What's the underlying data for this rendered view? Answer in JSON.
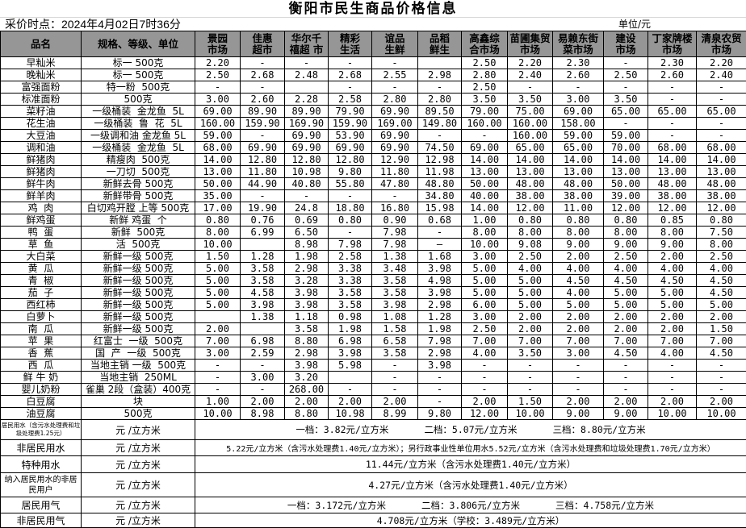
{
  "title": "衡阳市民生商品价格信息",
  "timestamp": "采价时点：2024年4月02日7时36分",
  "unit": "单位/元",
  "header_color": "#969696",
  "columns": [
    "品名",
    "规格、等级、单位",
    "景园\n市场",
    "佳惠\n超市",
    "华尔千\n禧超 市",
    "精彩\n生活",
    "谊品\n生鲜",
    "品稻\n鲜生",
    "高鑫综\n合市场",
    "苗圃集贸\n市场",
    "易赖东街\n菜市场",
    "建设\n市场",
    "丁家牌楼\n市场",
    "清泉农贸\n市场"
  ],
  "rows": [
    {
      "name": "早籼米",
      "spec": "标一 500克",
      "prices": [
        "2.20",
        "-",
        "-",
        "-",
        "-",
        "",
        "2.50",
        "2.20",
        "2.30",
        "-",
        "2.30",
        "2.20"
      ]
    },
    {
      "name": "晚籼米",
      "spec": "标一 500克",
      "prices": [
        "2.50",
        "2.68",
        "2.48",
        "2.68",
        "2.55",
        "2.98",
        "2.80",
        "2.40",
        "2.60",
        "2.50",
        "2.60",
        "2.40"
      ]
    },
    {
      "name": "富强面粉",
      "spec": "特一粉  500克",
      "prices": [
        "-",
        "-",
        "",
        "-",
        "-",
        "-",
        "2.50",
        "-",
        "-",
        "-",
        "-",
        "-"
      ]
    },
    {
      "name": "标准面粉",
      "spec": "500克",
      "prices": [
        "3.00",
        "2.60",
        "2.28",
        "2.58",
        "2.80",
        "2.80",
        "3.50",
        "3.50",
        "3.00",
        "3.50",
        "-",
        "-"
      ]
    },
    {
      "name": "菜籽油",
      "spec": "一级桶装  金龙鱼  5L",
      "prices": [
        "69.00",
        "89.90",
        "89.90",
        "79.90",
        "69.90",
        "89.50",
        "79.00",
        "75.00",
        "69.00",
        "65.00",
        "65.00",
        "65.00"
      ]
    },
    {
      "name": "花生油",
      "spec": "一级桶装  鲁  花  5L",
      "prices": [
        "160.00",
        "159.90",
        "169.90",
        "159.90",
        "169.00",
        "149.80",
        "160.00",
        "160.00",
        "158.00",
        "-",
        "-",
        "-"
      ]
    },
    {
      "name": "大豆油",
      "spec": "一级调和油 金龙鱼 5L",
      "prices": [
        "59.00",
        "-",
        "69.90",
        "53.90",
        "69.90",
        "-",
        "-",
        "160.00",
        "59.00",
        "59.00",
        "-",
        "-"
      ]
    },
    {
      "name": "调和油",
      "spec": "一级桶装  金龙鱼  5L",
      "prices": [
        "68.00",
        "69.90",
        "69.90",
        "69.90",
        "69.90",
        "74.50",
        "69.00",
        "65.00",
        "65.00",
        "70.00",
        "68.00",
        "68.00"
      ]
    },
    {
      "name": "鲜猪肉",
      "spec": "精瘦肉  500克",
      "prices": [
        "14.00",
        "12.80",
        "12.80",
        "12.80",
        "12.90",
        "12.98",
        "14.00",
        "14.00",
        "14.00",
        "14.00",
        "14.00",
        "14.00"
      ]
    },
    {
      "name": "鲜猪肉",
      "spec": "一刀切  500克",
      "prices": [
        "13.00",
        "11.80",
        "10.98",
        "9.80",
        "11.80",
        "11.98",
        "13.00",
        "13.00",
        "13.00",
        "13.00",
        "13.00",
        "13.00"
      ]
    },
    {
      "name": "鲜牛肉",
      "spec": "新鲜去骨 500克",
      "prices": [
        "50.00",
        "44.90",
        "40.80",
        "55.80",
        "47.80",
        "48.80",
        "50.00",
        "48.00",
        "48.00",
        "50.00",
        "48.00",
        "48.00"
      ]
    },
    {
      "name": "鲜羊肉",
      "spec": "新鲜带骨 500克",
      "prices": [
        "35.00",
        "-",
        "-",
        "-",
        "-",
        "34.80",
        "40.00",
        "38.00",
        "38.00",
        "39.00",
        "38.00",
        "38.00"
      ]
    },
    {
      "name": "鸡  肉",
      "spec": "白切鸡开膛 上等 500克",
      "prices": [
        "17.00",
        "19.90",
        "24.8",
        "18.80",
        "16.80",
        "15.98",
        "14.00",
        "12.00",
        "11.00",
        "12.00",
        "12.00",
        "12.00"
      ]
    },
    {
      "name": "鲜鸡蛋",
      "spec": "新鲜 鸡蛋  个",
      "prices": [
        "0.80",
        "0.76",
        "0.69",
        "0.80",
        "0.90",
        "0.68",
        "1.00",
        "0.80",
        "0.80",
        "0.80",
        "0.85",
        "0.80"
      ]
    },
    {
      "name": "鸭  蛋",
      "spec": "新鲜  500克",
      "prices": [
        "8.00",
        "6.99",
        "6.50",
        "-",
        "7.98",
        "-",
        "8.00",
        "8.00",
        "8.00",
        "8.00",
        "8.00",
        "7.50"
      ]
    },
    {
      "name": "草  鱼",
      "spec": "活  500克",
      "prices": [
        "10.00",
        "",
        "8.98",
        "7.98",
        "7.98",
        "—",
        "10.00",
        "9.08",
        "9.00",
        "9.00",
        "9.00",
        "8.00"
      ]
    },
    {
      "name": "大白菜",
      "spec": "新鲜一级 500克",
      "prices": [
        "1.50",
        "1.28",
        "1.98",
        "2.58",
        "1.38",
        "1.68",
        "3.00",
        "2.50",
        "2.00",
        "2.50",
        "2.00",
        "2.50"
      ]
    },
    {
      "name": "黄  瓜",
      "spec": "新鲜一级 500克",
      "prices": [
        "5.00",
        "3.58",
        "2.98",
        "3.38",
        "3.48",
        "3.98",
        "5.00",
        "4.00",
        "4.00",
        "4.00",
        "4.00",
        "4.00"
      ]
    },
    {
      "name": "青  椒",
      "spec": "新鲜一级 500克",
      "prices": [
        "5.00",
        "3.58",
        "3.28",
        "3.38",
        "3.58",
        "4.98",
        "5.00",
        "5.00",
        "4.50",
        "4.50",
        "4.50",
        "4.50"
      ]
    },
    {
      "name": "茄  子",
      "spec": "新鲜一级 500克",
      "prices": [
        "5.00",
        "4.58",
        "3.98",
        "3.58",
        "3.58",
        "3.98",
        "5.00",
        "5.00",
        "4.00",
        "5.00",
        "5.00",
        "4.50"
      ]
    },
    {
      "name": "西红柿",
      "spec": "新鲜一级 500克",
      "prices": [
        "5.00",
        "3.98",
        "3.98",
        "3.58",
        "3.98",
        "2.98",
        "6.00",
        "5.00",
        "5.00",
        "5.00",
        "5.00",
        "5.00"
      ]
    },
    {
      "name": "白萝卜",
      "spec": "新鲜一级 500克",
      "prices": [
        "",
        "1.38",
        "1.18",
        "0.98",
        "1.08",
        "1.28",
        "3.00",
        "2.00",
        "2.00",
        "2.00",
        "2.00",
        "2.00"
      ]
    },
    {
      "name": "南  瓜",
      "spec": "新鲜一级 500克",
      "prices": [
        "2.00",
        "",
        "3.58",
        "1.98",
        "1.58",
        "1.98",
        "2.50",
        "2.00",
        "2.00",
        "2.00",
        "2.00",
        "1.50"
      ]
    },
    {
      "name": "苹  果",
      "spec": "红富士  一级  500克",
      "prices": [
        "7.00",
        "6.98",
        "8.80",
        "6.98",
        "6.58",
        "7.98",
        "7.00",
        "7.00",
        "7.00",
        "7.00",
        "7.00",
        "7.00"
      ]
    },
    {
      "name": "香  蕉",
      "spec": "国  产  一级  500克",
      "prices": [
        "3.00",
        "2.59",
        "2.98",
        "3.98",
        "3.58",
        "2.98",
        "4.00",
        "3.50",
        "3.00",
        "4.50",
        "4.00",
        "4.50"
      ]
    },
    {
      "name": "西  瓜",
      "spec": "当地主销 一级  500克",
      "prices": [
        "-",
        "-",
        "3.98",
        "5.98",
        "-",
        "3.98",
        "-",
        "-",
        "-",
        "-",
        "-",
        "-"
      ]
    },
    {
      "name": "鲜 牛 奶",
      "spec": "当地主销  250ML",
      "prices": [
        "-",
        "3.00",
        "3.20",
        "",
        "-",
        "-",
        "-",
        "-",
        "-",
        "-",
        "-",
        "-"
      ]
    },
    {
      "name": "婴儿奶粉",
      "spec": "雀巢 2段（盒装）400克",
      "prices": [
        "-",
        "-",
        "268.00",
        "-",
        "-",
        "-",
        "-",
        "-",
        "-",
        "-",
        "-",
        "-"
      ]
    },
    {
      "name": "白豆腐",
      "spec": "块",
      "prices": [
        "1.00",
        "2.00",
        "2.00",
        "2.00",
        "2.00",
        "-",
        "2.00",
        "1.50",
        "2.00",
        "2.00",
        "2.00",
        "2.00"
      ]
    },
    {
      "name": "油豆腐",
      "spec": "500克",
      "prices": [
        "10.00",
        "8.98",
        "8.80",
        "10.98",
        "8.99",
        "9.80",
        "12.00",
        "10.00",
        "9.00",
        "9.00",
        "10.00",
        "10.00"
      ]
    }
  ],
  "utilities": [
    {
      "name": "居民用水（含污水处理费和垃圾处理费1.25元）",
      "unit": "元 /立方米",
      "tiers": [
        "一档：3.82元/立方米",
        "二档：5.07元/立方米",
        "三档：8.80元/立方米"
      ]
    },
    {
      "name": "非居民用水",
      "unit": "元 /立方米",
      "text": "5.22元/立方米（含污水处理费1.40元/立方米）；另行政事业性单位用水5.52元/立方米（含污水处理费和垃圾处理费1.70元/立方米）"
    },
    {
      "name": "特种用水",
      "unit": "元 /立方米",
      "text": "11.44元/立方米（含污水处理费1.40元/立方米）"
    },
    {
      "name": "纳入居民用水的非居民用户",
      "unit": "元 /立方米",
      "text": "4.27元/立方米（含污水处理费1.40元/立方米）"
    },
    {
      "name": "居民用气",
      "unit": "元 /立方米",
      "tiers": [
        "一档：3.172元/立方米",
        "二档：3.806元/立方米",
        "三档：4.758元/立方米"
      ]
    },
    {
      "name": "非居民用气",
      "unit": "元 /立方米",
      "text": "4.708元/立方米（学校：3.489元/立方米）"
    }
  ]
}
